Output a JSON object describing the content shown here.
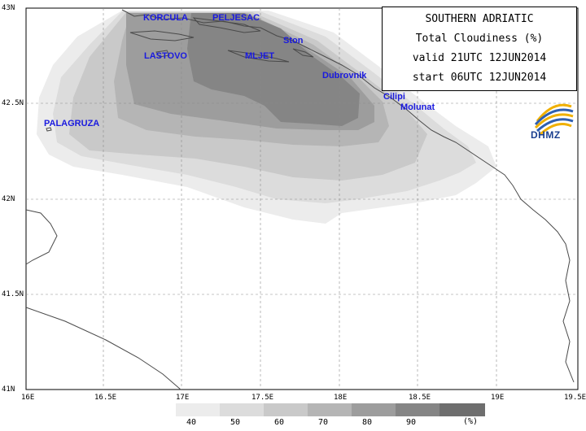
{
  "title_box": {
    "line1": "SOUTHERN ADRIATIC",
    "line2": "Total Cloudiness (%)",
    "line3": "valid 21UTC 12JUN2014",
    "line4": "start 06UTC 12JUN2014"
  },
  "logo": {
    "text": "DHMZ",
    "name": "dhmz-logo"
  },
  "places": {
    "korcula": "KORCULA",
    "peljesac": "PELJESAC",
    "ston": "Ston",
    "lastovo": "LASTOVO",
    "mljet": "MLJET",
    "dubrovnik": "Dubrovnik",
    "cilipi": "Cilipi",
    "molunat": "Molunat",
    "palagruza": "PALAGRUZA"
  },
  "lat_labels": [
    "43N",
    "42.5N",
    "42N",
    "41.5N",
    "41N"
  ],
  "lon_labels": [
    "16E",
    "16.5E",
    "17E",
    "17.5E",
    "18E",
    "18.5E",
    "19E",
    "19.5E"
  ],
  "legend": {
    "unit": "(%)",
    "ticks": [
      "40",
      "50",
      "60",
      "70",
      "80",
      "90"
    ],
    "colors": [
      "#ececec",
      "#dcdcdc",
      "#c9c9c9",
      "#b5b5b5",
      "#9d9d9d",
      "#858585",
      "#6e6e6e"
    ]
  },
  "colors": {
    "place_label": "#1a1adf",
    "coast": "#4a4a4a",
    "grid": "#8a8a8a"
  }
}
